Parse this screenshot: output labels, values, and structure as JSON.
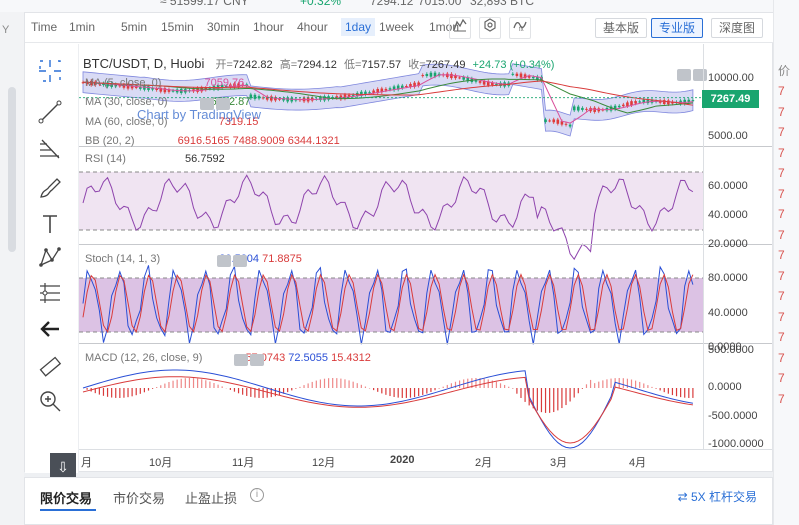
{
  "ticker": {
    "cny": "≈ 51599.17 CNY",
    "change": "+0.32%",
    "high": "7294.12",
    "low": "7015.00",
    "volume": "32,893 BTC"
  },
  "toolbar": {
    "time_label": "Time",
    "intervals": [
      "1min",
      "5min",
      "15min",
      "30min",
      "1hour",
      "4hour",
      "1day",
      "1week",
      "1mon"
    ],
    "active_interval": "1day",
    "views": [
      "基本版",
      "专业版",
      "深度图"
    ],
    "active_view": "专业版"
  },
  "legend": {
    "symbol": "BTC/USDT, D, Huobi",
    "open_label": "开=",
    "open": "7242.82",
    "high_label": "高=",
    "high": "7294.12",
    "low_label": "低=",
    "low": "7157.57",
    "close_label": "收=",
    "close": "7267.49",
    "change": "+24.73 (+0.34%)",
    "ma5": "MA (5, close, 0)",
    "ma5_val": "7059.76",
    "ma30": "MA (30, close, 0)",
    "ma30_val": "6732.87",
    "ma60": "MA (60, close, 0)",
    "ma60_val": "7319.15",
    "bb": "BB (20, 2)",
    "bb_vals": "6916.5165  7488.9009  6344.1321",
    "watermark": "Chart by TradingView",
    "rsi": "RSI (14)",
    "rsi_val": "56.7592",
    "stoch": "Stoch (14, 1, 3)",
    "stoch_k": "80.5204",
    "stoch_d": "71.8875",
    "macd": "MACD (12, 26, close, 9)",
    "macd_a": "57.0743",
    "macd_b": "72.5055",
    "macd_c": "15.4312"
  },
  "axis": {
    "price": [
      "10000.00",
      "5000.00"
    ],
    "last_price": "7267.49",
    "rsi": [
      "60.0000",
      "40.0000",
      "20.0000"
    ],
    "stoch": [
      "80.0000",
      "40.0000",
      "0.0000"
    ],
    "macd": [
      "500.0000",
      "0.0000",
      "-500.0000",
      "-1000.0000"
    ],
    "time": [
      "月",
      "10月",
      "11月",
      "12月",
      "2020",
      "2月",
      "3月",
      "4月"
    ]
  },
  "orders": {
    "tabs": [
      "限价交易",
      "市价交易",
      "止盈止损"
    ],
    "active": "限价交易",
    "leverage": "5X 杠杆交易"
  },
  "right_col": {
    "label": "价",
    "digits": [
      "7",
      "7",
      "7",
      "7",
      "7",
      "7",
      "7",
      "7",
      "7",
      "7",
      "7",
      "7",
      "7",
      "7",
      "7",
      "7"
    ]
  },
  "colors": {
    "up": "#19a56f",
    "down": "#e03a3a",
    "accent": "#2a6fd6",
    "bb_fill": "#c9cdf2",
    "osc_fill": "#f0e4f2"
  }
}
